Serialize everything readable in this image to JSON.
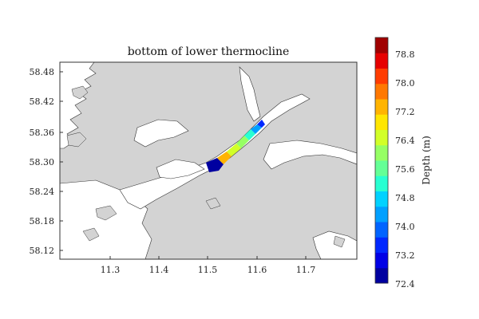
{
  "map": {
    "title": "bottom of lower thermocline",
    "x_ticks": [
      "11.3",
      "11.4",
      "11.5",
      "11.6",
      "11.7"
    ],
    "y_ticks": [
      "58.48",
      "58.42",
      "58.36",
      "58.30",
      "58.24",
      "58.18",
      "58.12"
    ],
    "land_color": "#d3d3d3",
    "water_color": "#ffffff"
  },
  "colorbar": {
    "label": "Depth (m)",
    "tick_labels": [
      "78.8",
      "78.0",
      "77.2",
      "76.4",
      "75.6",
      "74.8",
      "74.0",
      "73.2",
      "72.4"
    ],
    "colors": [
      "#0000a0",
      "#0000e6",
      "#0028ff",
      "#0064ff",
      "#00a0ff",
      "#00d2ff",
      "#28ffd2",
      "#64ff96",
      "#96ff64",
      "#d2ff28",
      "#ffe600",
      "#ffb400",
      "#ff7800",
      "#ff3c00",
      "#e60000",
      "#a00000"
    ]
  }
}
